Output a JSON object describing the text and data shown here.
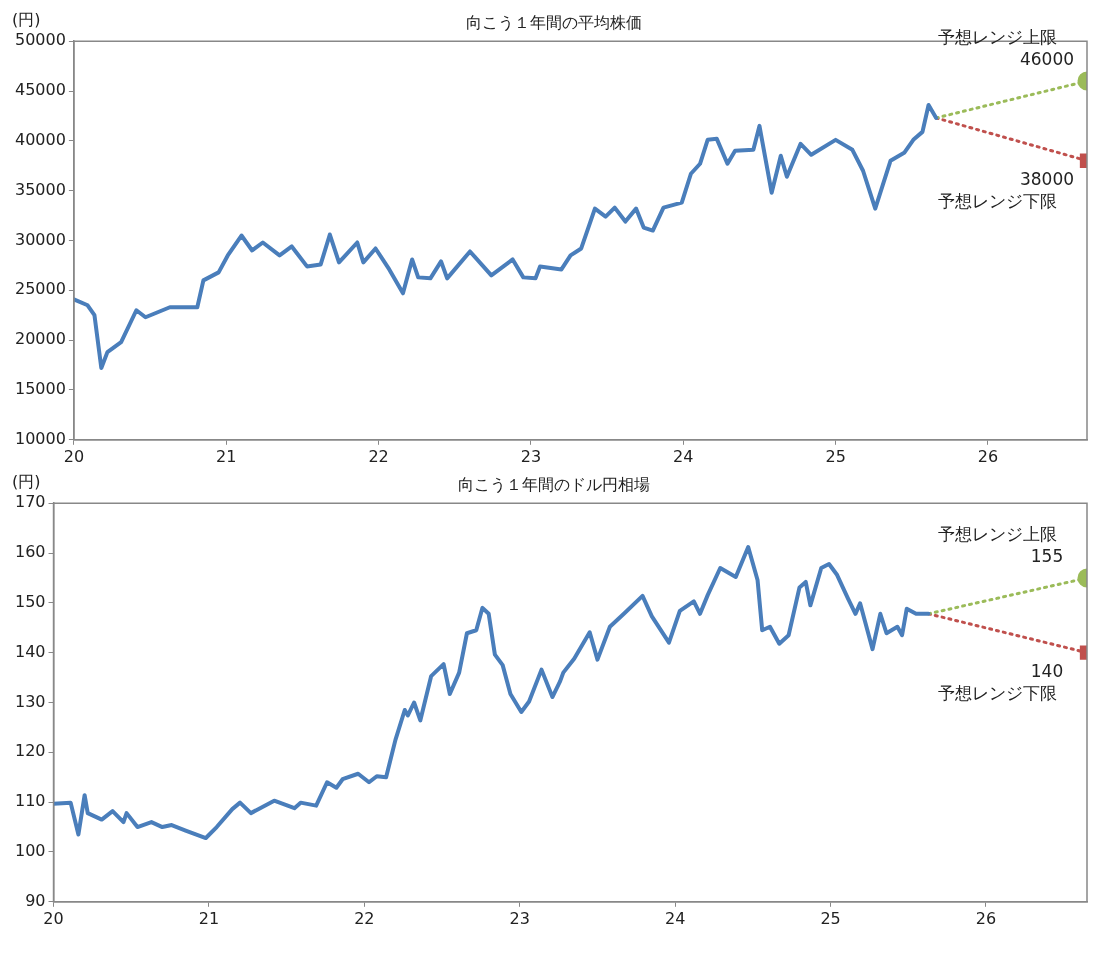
{
  "chart_data": [
    {
      "type": "line",
      "title": "向こう１年間の平均株価",
      "ylabel": "(円)",
      "xlim": [
        20,
        26.65
      ],
      "xticks": [
        20,
        21,
        22,
        23,
        24,
        25,
        26
      ],
      "ylim": [
        10000,
        50000
      ],
      "yticks": [
        10000,
        15000,
        20000,
        25000,
        30000,
        35000,
        40000,
        45000,
        50000
      ],
      "grid": false,
      "legend": false,
      "series": [
        {
          "color": "#4a7ebb",
          "x": [
            20.0,
            20.09,
            20.135,
            20.18,
            20.22,
            20.31,
            20.41,
            20.47,
            20.63,
            20.81,
            20.85,
            20.95,
            21.01,
            21.1,
            21.17,
            21.24,
            21.35,
            21.43,
            21.53,
            21.62,
            21.68,
            21.74,
            21.86,
            21.9,
            21.98,
            22.07,
            22.16,
            22.22,
            22.26,
            22.34,
            22.41,
            22.45,
            22.6,
            22.74,
            22.88,
            22.95,
            23.03,
            23.06,
            23.2,
            23.26,
            23.33,
            23.42,
            23.49,
            23.55,
            23.62,
            23.69,
            23.74,
            23.8,
            23.87,
            23.99,
            24.05,
            24.11,
            24.16,
            24.22,
            24.29,
            24.34,
            24.46,
            24.5,
            24.58,
            24.64,
            24.68,
            24.77,
            24.84,
            25.0,
            25.11,
            25.18,
            25.26,
            25.36,
            25.45,
            25.51,
            25.57,
            25.61,
            25.66
          ],
          "values": [
            24100,
            23500,
            22500,
            17200,
            18800,
            19800,
            23000,
            22300,
            23300,
            23300,
            26000,
            26800,
            28500,
            30500,
            29000,
            29800,
            28500,
            29400,
            27400,
            27600,
            30600,
            27800,
            29800,
            27800,
            29200,
            27100,
            24700,
            28100,
            26300,
            26200,
            27900,
            26200,
            28900,
            26500,
            28100,
            26300,
            26200,
            27400,
            27100,
            28500,
            29200,
            33200,
            32400,
            33300,
            31900,
            33200,
            31300,
            31000,
            33300,
            33800,
            36700,
            37700,
            40100,
            40200,
            37700,
            39000,
            39100,
            41500,
            34800,
            38500,
            36400,
            39700,
            38600,
            40100,
            39100,
            37000,
            33200,
            38000,
            38800,
            40100,
            40900,
            43600,
            42300
          ]
        },
        {
          "name": "予想レンジ上限",
          "color": "#9bbb59",
          "line_style": "dotted",
          "marker": "circle",
          "x": [
            25.66,
            26.65
          ],
          "values": [
            42300,
            46000
          ],
          "value_labels": [
            null,
            "46000"
          ]
        },
        {
          "name": "予想レンジ下限",
          "color": "#c0504d",
          "line_style": "dotted",
          "marker": "square",
          "x": [
            25.66,
            26.65
          ],
          "values": [
            42300,
            38000
          ],
          "value_labels": [
            null,
            "38000"
          ]
        }
      ]
    },
    {
      "type": "line",
      "title": "向こう１年間のドル円相場",
      "ylabel": "(円)",
      "xlim": [
        20,
        26.65
      ],
      "xticks": [
        20,
        21,
        22,
        23,
        24,
        25,
        26
      ],
      "ylim": [
        90,
        170
      ],
      "yticks": [
        90,
        100,
        110,
        120,
        130,
        140,
        150,
        160,
        170
      ],
      "grid": false,
      "legend": false,
      "series": [
        {
          "color": "#4a7ebb",
          "x": [
            20.0,
            20.11,
            20.16,
            20.2,
            20.22,
            20.31,
            20.38,
            20.45,
            20.47,
            20.54,
            20.63,
            20.7,
            20.76,
            20.85,
            20.98,
            21.05,
            21.15,
            21.2,
            21.27,
            21.42,
            21.55,
            21.59,
            21.69,
            21.76,
            21.82,
            21.86,
            21.96,
            22.03,
            22.08,
            22.14,
            22.2,
            22.26,
            22.28,
            22.32,
            22.36,
            22.43,
            22.51,
            22.55,
            22.61,
            22.66,
            22.72,
            22.76,
            22.8,
            22.84,
            22.89,
            22.94,
            23.01,
            23.06,
            23.14,
            23.21,
            23.26,
            23.28,
            23.35,
            23.45,
            23.5,
            23.58,
            23.67,
            23.79,
            23.85,
            23.96,
            24.03,
            24.12,
            24.16,
            24.21,
            24.29,
            24.39,
            24.47,
            24.53,
            24.56,
            24.61,
            24.67,
            24.73,
            24.8,
            24.84,
            24.87,
            24.94,
            24.99,
            25.04,
            25.11,
            25.16,
            25.19,
            25.27,
            25.32,
            25.36,
            25.43,
            25.46,
            25.49,
            25.55,
            25.63
          ],
          "values": [
            109.7,
            109.9,
            103.5,
            111.4,
            107.8,
            106.5,
            108.2,
            106.0,
            107.8,
            105.0,
            106.0,
            105.0,
            105.4,
            104.3,
            102.8,
            105.0,
            108.6,
            109.9,
            107.8,
            110.3,
            108.8,
            109.9,
            109.3,
            114.0,
            112.9,
            114.6,
            115.7,
            114.0,
            115.2,
            115.0,
            122.5,
            128.5,
            127.4,
            130.0,
            126.4,
            135.3,
            137.7,
            131.7,
            136.0,
            143.9,
            144.5,
            149.0,
            147.8,
            139.6,
            137.5,
            131.7,
            128.1,
            130.2,
            136.6,
            131.1,
            134.3,
            136.0,
            138.8,
            144.1,
            138.6,
            145.2,
            147.8,
            151.4,
            147.3,
            142.0,
            148.4,
            150.3,
            147.8,
            151.6,
            157.0,
            155.2,
            161.2,
            154.6,
            144.5,
            145.2,
            141.8,
            143.5,
            153.1,
            154.2,
            149.5,
            157.0,
            157.8,
            155.7,
            151.0,
            147.8,
            149.9,
            140.7,
            147.8,
            143.9,
            145.2,
            143.5,
            148.8,
            147.8,
            147.8
          ]
        },
        {
          "name": "予想レンジ上限",
          "color": "#9bbb59",
          "line_style": "dotted",
          "marker": "circle",
          "x": [
            25.63,
            26.65
          ],
          "values": [
            147.8,
            155
          ],
          "value_labels": [
            null,
            "155"
          ]
        },
        {
          "name": "予想レンジ下限",
          "color": "#c0504d",
          "line_style": "dotted",
          "marker": "square",
          "x": [
            25.63,
            26.65
          ],
          "values": [
            147.8,
            140
          ],
          "value_labels": [
            null,
            "140"
          ]
        }
      ]
    }
  ]
}
